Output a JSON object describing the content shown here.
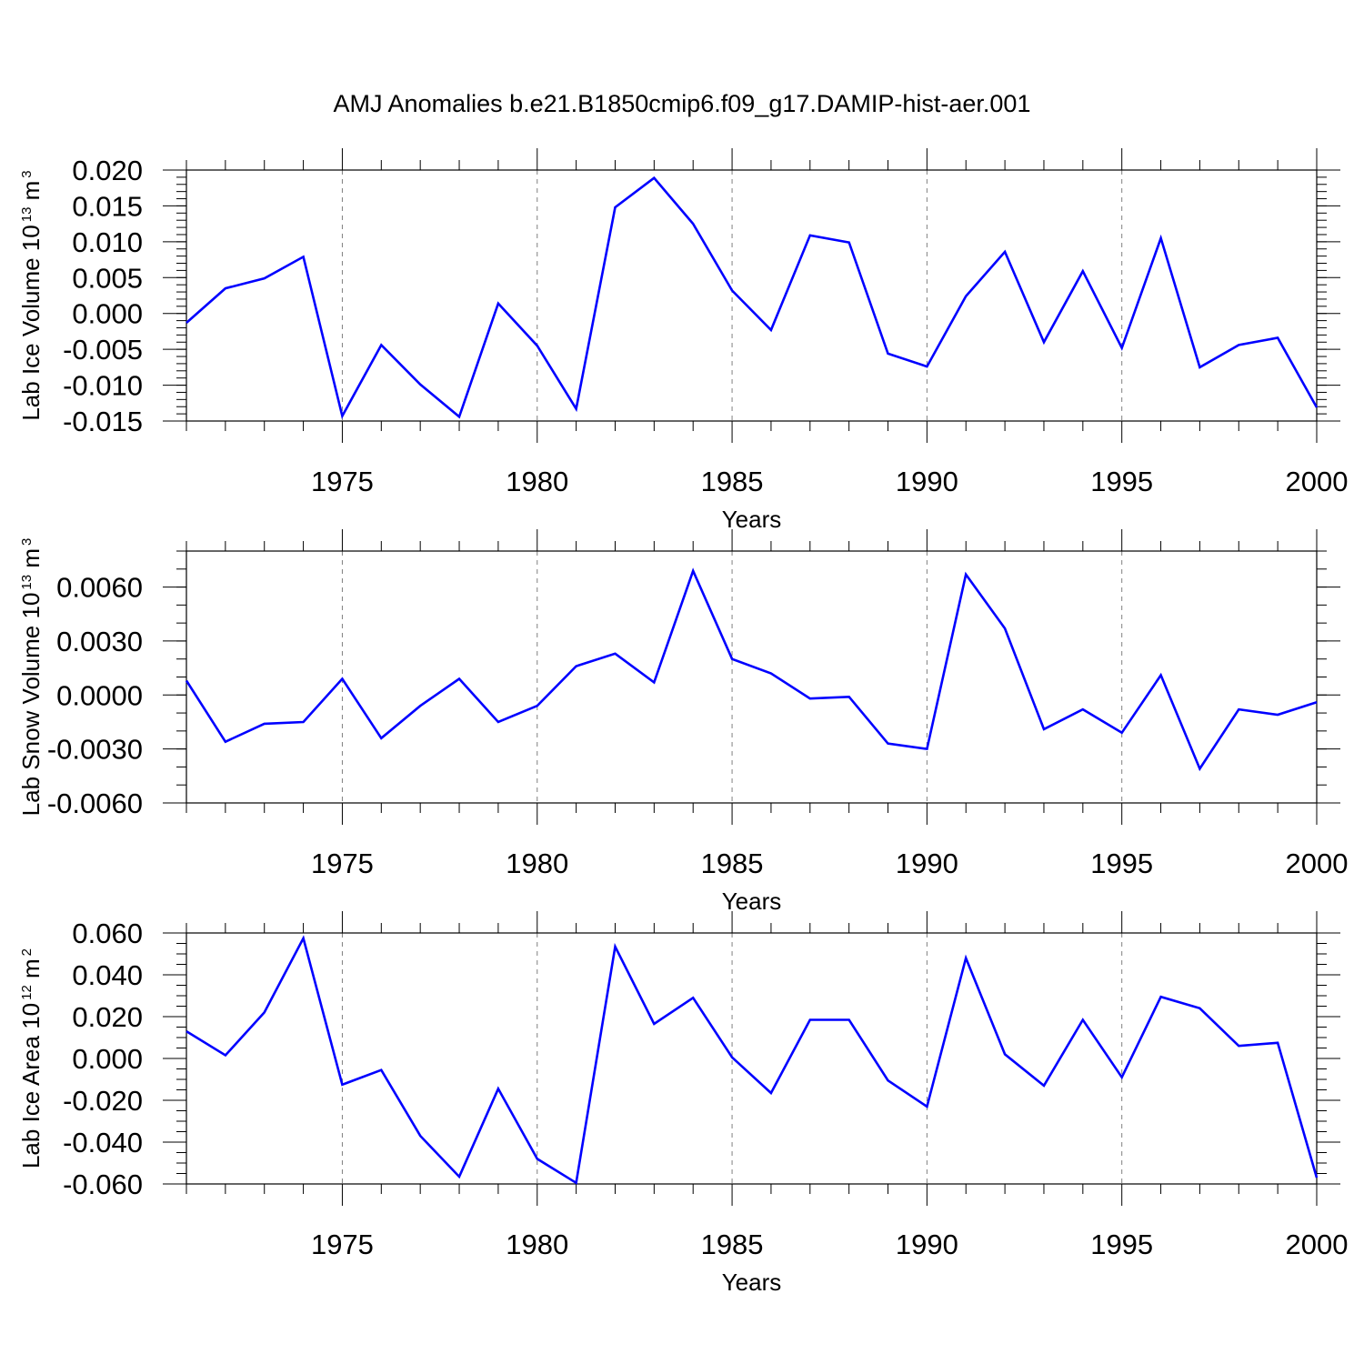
{
  "title": "AMJ Anomalies b.e21.B1850cmip6.f09_g17.DAMIP-hist-aer.001",
  "colors": {
    "line": "#0000ff",
    "axis": "#000000",
    "grid": "#808080"
  },
  "chart_data": [
    {
      "type": "line",
      "xlabel": "Years",
      "ylabel": {
        "text": "Lab Ice Volume 10",
        "exp": "13",
        "unit": " m",
        "unit_exp": "3"
      },
      "xlim": [
        1971,
        2000
      ],
      "ylim": [
        -0.015,
        0.02
      ],
      "yticks": [
        0.02,
        0.015,
        0.01,
        0.005,
        0.0,
        -0.005,
        -0.01,
        -0.015
      ],
      "ytick_labels": [
        "0.020",
        "0.015",
        "0.010",
        "0.005",
        "0.000",
        "-0.005",
        "-0.010",
        "-0.015"
      ],
      "ytick_minor_step": 0.001,
      "xticks": [
        1975,
        1980,
        1985,
        1990,
        1995,
        2000
      ],
      "xtick_labels": [
        "1975",
        "1980",
        "1985",
        "1990",
        "1995",
        "2000"
      ],
      "x": [
        1971,
        1972,
        1973,
        1974,
        1975,
        1976,
        1977,
        1978,
        1979,
        1980,
        1981,
        1982,
        1983,
        1984,
        1985,
        1986,
        1987,
        1988,
        1989,
        1990,
        1991,
        1992,
        1993,
        1994,
        1995,
        1996,
        1997,
        1998,
        1999,
        2000
      ],
      "series": [
        {
          "name": "Lab Ice Volume",
          "values": [
            -0.0013,
            0.0035,
            0.0049,
            0.0079,
            -0.0143,
            -0.0044,
            -0.0099,
            -0.0144,
            0.0014,
            -0.0045,
            -0.0133,
            0.0148,
            0.0189,
            0.0125,
            0.0032,
            -0.0023,
            0.0109,
            0.0099,
            -0.0056,
            -0.0074,
            0.0024,
            0.0086,
            -0.004,
            0.0059,
            -0.0048,
            0.0105,
            -0.0075,
            -0.0044,
            -0.0034,
            -0.0131
          ]
        }
      ]
    },
    {
      "type": "line",
      "xlabel": "Years",
      "ylabel": {
        "text": "Lab Snow Volume 10",
        "exp": "13",
        "unit": " m",
        "unit_exp": "3"
      },
      "xlim": [
        1971,
        2000
      ],
      "ylim": [
        -0.006,
        0.008
      ],
      "yticks": [
        0.006,
        0.003,
        0.0,
        -0.003,
        -0.006
      ],
      "ytick_labels": [
        "0.0060",
        "0.0030",
        "0.0000",
        "-0.0030",
        "-0.0060"
      ],
      "ytick_minor_step": 0.001,
      "xticks": [
        1975,
        1980,
        1985,
        1990,
        1995,
        2000
      ],
      "xtick_labels": [
        "1975",
        "1980",
        "1985",
        "1990",
        "1995",
        "2000"
      ],
      "x": [
        1971,
        1972,
        1973,
        1974,
        1975,
        1976,
        1977,
        1978,
        1979,
        1980,
        1981,
        1982,
        1983,
        1984,
        1985,
        1986,
        1987,
        1988,
        1989,
        1990,
        1991,
        1992,
        1993,
        1994,
        1995,
        1996,
        1997,
        1998,
        1999,
        2000
      ],
      "series": [
        {
          "name": "Lab Snow Volume",
          "values": [
            0.0008,
            -0.0026,
            -0.0016,
            -0.0015,
            0.0009,
            -0.0024,
            -0.0006,
            0.0009,
            -0.0015,
            -0.0006,
            0.0016,
            0.0023,
            0.0007,
            0.0069,
            0.002,
            0.0012,
            -0.0002,
            -0.0001,
            -0.0027,
            -0.003,
            0.0067,
            0.0037,
            -0.0019,
            -0.0008,
            -0.0021,
            0.0011,
            -0.0041,
            -0.0008,
            -0.0011,
            -0.0004
          ]
        }
      ]
    },
    {
      "type": "line",
      "xlabel": "Years",
      "ylabel": {
        "text": "Lab Ice Area 10",
        "exp": "12",
        "unit": " m",
        "unit_exp": "2"
      },
      "xlim": [
        1971,
        2000
      ],
      "ylim": [
        -0.06,
        0.06
      ],
      "yticks": [
        0.06,
        0.04,
        0.02,
        0.0,
        -0.02,
        -0.04,
        -0.06
      ],
      "ytick_labels": [
        "0.060",
        "0.040",
        "0.020",
        "0.000",
        "-0.020",
        "-0.040",
        "-0.060"
      ],
      "ytick_minor_step": 0.005,
      "xticks": [
        1975,
        1980,
        1985,
        1990,
        1995,
        2000
      ],
      "xtick_labels": [
        "1975",
        "1980",
        "1985",
        "1990",
        "1995",
        "2000"
      ],
      "x": [
        1971,
        1972,
        1973,
        1974,
        1975,
        1976,
        1977,
        1978,
        1979,
        1980,
        1981,
        1982,
        1983,
        1984,
        1985,
        1986,
        1987,
        1988,
        1989,
        1990,
        1991,
        1992,
        1993,
        1994,
        1995,
        1996,
        1997,
        1998,
        1999,
        2000
      ],
      "series": [
        {
          "name": "Lab Ice Area",
          "values": [
            0.013,
            0.0015,
            0.022,
            0.0575,
            -0.0125,
            -0.0055,
            -0.037,
            -0.0565,
            -0.0145,
            -0.048,
            -0.0595,
            0.0535,
            0.0165,
            0.029,
            0.0005,
            -0.0165,
            0.0185,
            0.0185,
            -0.0105,
            -0.023,
            0.048,
            0.002,
            -0.013,
            0.0185,
            -0.009,
            0.0295,
            0.024,
            0.006,
            0.0075,
            -0.057
          ]
        }
      ]
    }
  ]
}
